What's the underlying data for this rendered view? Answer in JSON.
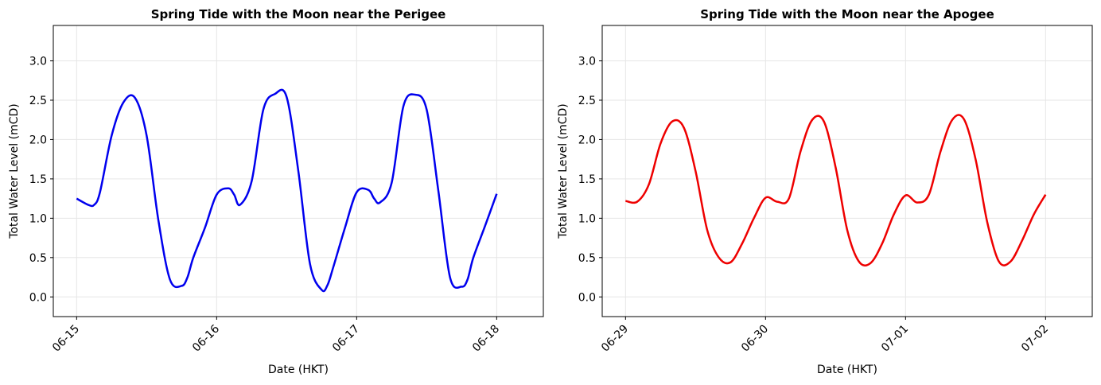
{
  "chart_data": [
    {
      "type": "line",
      "title": "Spring Tide with the Moon near the Perigee",
      "xlabel": "Date (HKT)",
      "ylabel": "Total Water Level (mCD)",
      "ylim": [
        -0.25,
        3.45
      ],
      "xlim": [
        "06-14 20:00",
        "06-18 08:00"
      ],
      "yticks": [
        0.0,
        0.5,
        1.0,
        1.5,
        2.0,
        2.5,
        3.0
      ],
      "xticks": [
        "06-15",
        "06-16",
        "06-17",
        "06-18"
      ],
      "grid": true,
      "series": [
        {
          "color": "#0000ee",
          "x": [
            "06-15 00:00",
            "06-15 02:00",
            "06-15 03:00",
            "06-15 04:00",
            "06-15 06:00",
            "06-15 08:00",
            "06-15 10:00",
            "06-15 12:00",
            "06-15 14:00",
            "06-15 16:00",
            "06-15 18:00",
            "06-15 19:00",
            "06-15 20:00",
            "06-15 22:00",
            "06-16 00:00",
            "06-16 02:00",
            "06-16 03:00",
            "06-16 04:00",
            "06-16 06:00",
            "06-16 08:00",
            "06-16 10:00",
            "06-16 12:00",
            "06-16 14:00",
            "06-16 16:00",
            "06-16 18:00",
            "06-16 19:00",
            "06-16 20:00",
            "06-16 22:00",
            "06-17 00:00",
            "06-17 02:00",
            "06-17 03:00",
            "06-17 04:00",
            "06-17 06:00",
            "06-17 08:00",
            "06-17 10:00",
            "06-17 12:00",
            "06-17 14:00",
            "06-17 16:00",
            "06-17 18:00",
            "06-17 19:00",
            "06-17 20:00",
            "06-17 22:00",
            "06-18 00:00"
          ],
          "values": [
            1.25,
            1.17,
            1.17,
            1.33,
            2.05,
            2.47,
            2.53,
            2.05,
            0.98,
            0.22,
            0.14,
            0.25,
            0.5,
            0.88,
            1.3,
            1.38,
            1.3,
            1.17,
            1.47,
            2.38,
            2.58,
            2.54,
            1.6,
            0.42,
            0.09,
            0.15,
            0.38,
            0.88,
            1.33,
            1.36,
            1.25,
            1.2,
            1.45,
            2.42,
            2.57,
            2.38,
            1.35,
            0.25,
            0.13,
            0.22,
            0.5,
            0.9,
            1.31
          ]
        }
      ]
    },
    {
      "type": "line",
      "title": "Spring Tide with the Moon near the Apogee",
      "xlabel": "Date (HKT)",
      "ylabel": "Total Water Level (mCD)",
      "ylim": [
        -0.25,
        3.45
      ],
      "xlim": [
        "06-28 20:00",
        "07-02 08:00"
      ],
      "yticks": [
        0.0,
        0.5,
        1.0,
        1.5,
        2.0,
        2.5,
        3.0
      ],
      "xticks": [
        "06-29",
        "06-30",
        "07-01",
        "07-02"
      ],
      "grid": true,
      "series": [
        {
          "color": "#ee0000",
          "x": [
            "06-29 00:00",
            "06-29 02:00",
            "06-29 04:00",
            "06-29 06:00",
            "06-29 08:00",
            "06-29 10:00",
            "06-29 12:00",
            "06-29 14:00",
            "06-29 16:00",
            "06-29 18:00",
            "06-29 20:00",
            "06-29 22:00",
            "06-30 00:00",
            "06-30 02:00",
            "06-30 04:00",
            "06-30 06:00",
            "06-30 08:00",
            "06-30 10:00",
            "06-30 12:00",
            "06-30 14:00",
            "06-30 16:00",
            "06-30 18:00",
            "06-30 20:00",
            "06-30 22:00",
            "07-01 00:00",
            "07-01 02:00",
            "07-01 04:00",
            "07-01 06:00",
            "07-01 08:00",
            "07-01 10:00",
            "07-01 12:00",
            "07-01 14:00",
            "07-01 16:00",
            "07-01 18:00",
            "07-01 20:00",
            "07-01 22:00",
            "07-02 00:00"
          ],
          "values": [
            1.22,
            1.21,
            1.43,
            1.95,
            2.23,
            2.15,
            1.6,
            0.85,
            0.5,
            0.44,
            0.68,
            1.0,
            1.26,
            1.21,
            1.25,
            1.85,
            2.25,
            2.23,
            1.65,
            0.85,
            0.45,
            0.43,
            0.68,
            1.05,
            1.29,
            1.2,
            1.3,
            1.85,
            2.25,
            2.26,
            1.75,
            0.95,
            0.45,
            0.45,
            0.72,
            1.05,
            1.3
          ]
        }
      ]
    }
  ]
}
